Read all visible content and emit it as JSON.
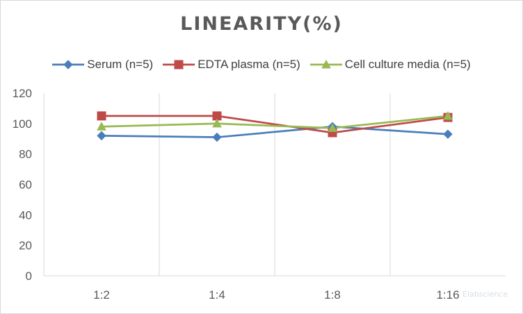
{
  "chart_data": {
    "type": "line",
    "title": "LINEARITY(%)",
    "categories": [
      "1:2",
      "1:4",
      "1:8",
      "1:16"
    ],
    "series": [
      {
        "name": "Serum (n=5)",
        "values": [
          92,
          91,
          98,
          93
        ],
        "color": "#4a7ebb",
        "marker": "diamond"
      },
      {
        "name": "EDTA plasma (n=5)",
        "values": [
          105,
          105,
          94,
          104
        ],
        "color": "#be4b48",
        "marker": "square"
      },
      {
        "name": "Cell culture media (n=5)",
        "values": [
          98,
          100,
          97,
          105
        ],
        "color": "#98b954",
        "marker": "triangle"
      }
    ],
    "ylim": [
      0,
      120
    ],
    "yticks": [
      0,
      20,
      40,
      60,
      80,
      100,
      120
    ],
    "grid": "vertical",
    "legend_position": "top"
  },
  "watermark": "Elabscience"
}
